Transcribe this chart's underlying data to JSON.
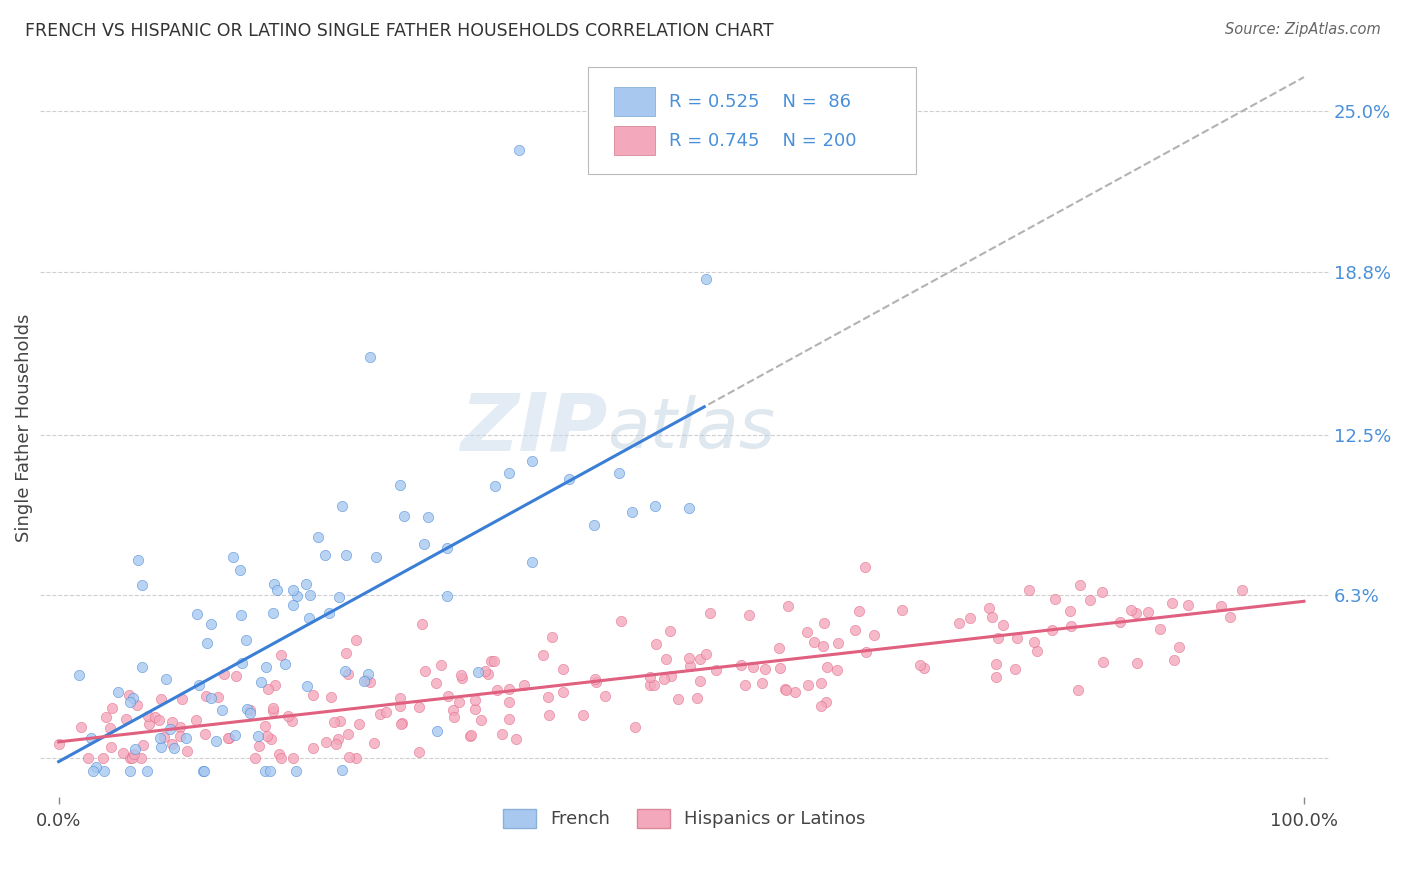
{
  "title": "FRENCH VS HISPANIC OR LATINO SINGLE FATHER HOUSEHOLDS CORRELATION CHART",
  "source": "Source: ZipAtlas.com",
  "ylabel": "Single Father Households",
  "legend_R1": "0.525",
  "legend_N1": "86",
  "legend_R2": "0.745",
  "legend_N2": "200",
  "legend_label1": "French",
  "legend_label2": "Hispanics or Latinos",
  "color_french": "#a8c8f0",
  "color_hispanic": "#f4a8bc",
  "color_text_blue": "#4a90d9",
  "color_trendline_french": "#3a7fd5",
  "color_trendline_hispanic": "#e06080",
  "color_dashed": "#aaaaaa",
  "background_color": "#ffffff",
  "grid_color": "#c8c8c8",
  "ytick_vals": [
    0.0,
    0.063,
    0.125,
    0.188,
    0.25
  ],
  "ytick_labels": [
    "",
    "6.3%",
    "12.5%",
    "18.8%",
    "25.0%"
  ],
  "watermark_zip": "ZIP",
  "watermark_atlas": "atlas",
  "seed_french": 42,
  "seed_hispanic": 99
}
